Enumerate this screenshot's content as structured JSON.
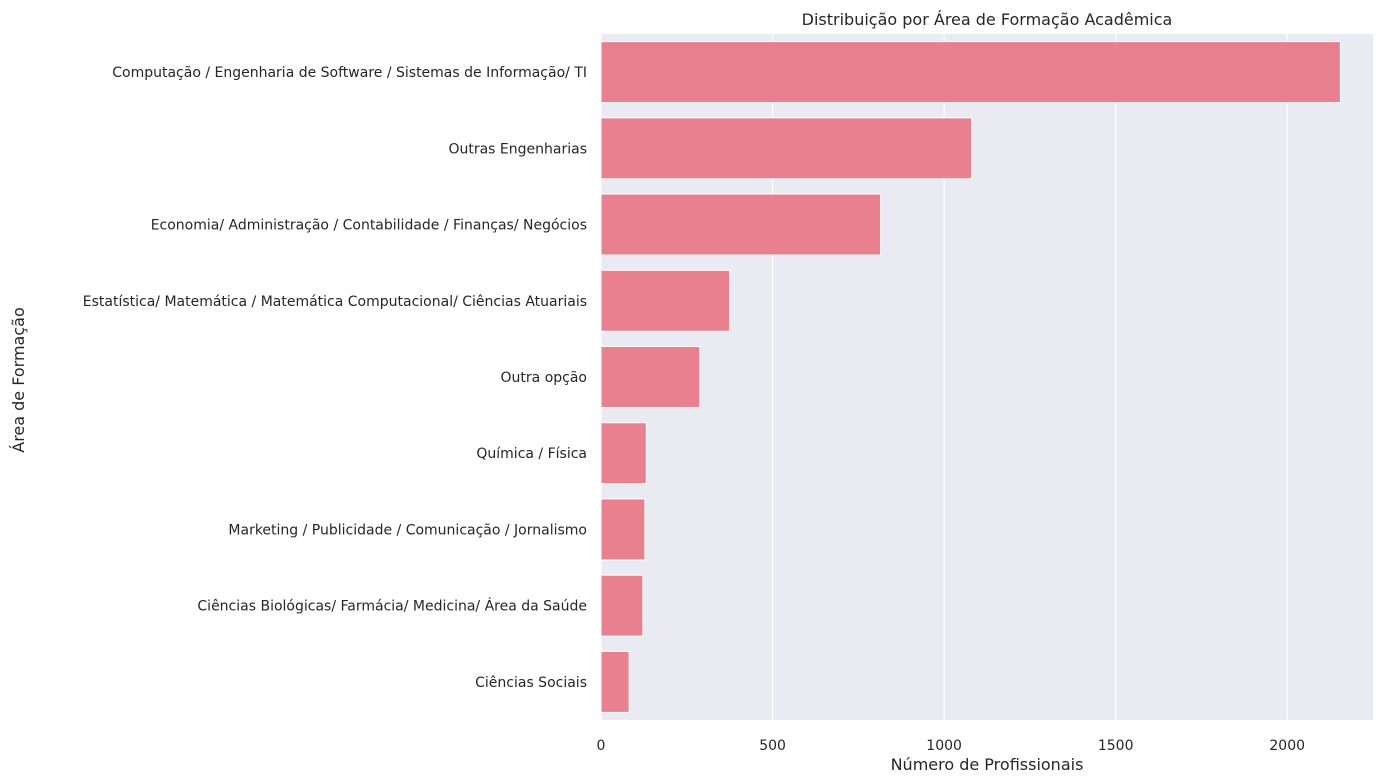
{
  "chart_data": {
    "type": "bar",
    "orientation": "horizontal",
    "title": "Distribuição por Área de Formação Acadêmica",
    "xlabel": "Número de Profissionais",
    "ylabel": "Área de Formação",
    "xlim": [
      0,
      2250
    ],
    "xticks": [
      0,
      500,
      1000,
      1500,
      2000
    ],
    "grid": true,
    "colors": {
      "bar": "#e8808f",
      "background": "#eaeaf2",
      "grid": "#ffffff"
    },
    "categories": [
      "Computação / Engenharia de Software / Sistemas de Informação/ TI",
      "Outras Engenharias",
      "Economia/ Administração / Contabilidade / Finanças/ Negócios",
      "Estatística/ Matemática / Matemática Computacional/ Ciências Atuariais",
      "Outra opção",
      "Química / Física",
      "Marketing / Publicidade / Comunicação / Jornalismo",
      "Ciências Biológicas/ Farmácia/ Medicina/ Área da Saúde",
      "Ciências Sociais"
    ],
    "values": [
      2155,
      1080,
      815,
      375,
      288,
      132,
      128,
      122,
      82
    ]
  }
}
